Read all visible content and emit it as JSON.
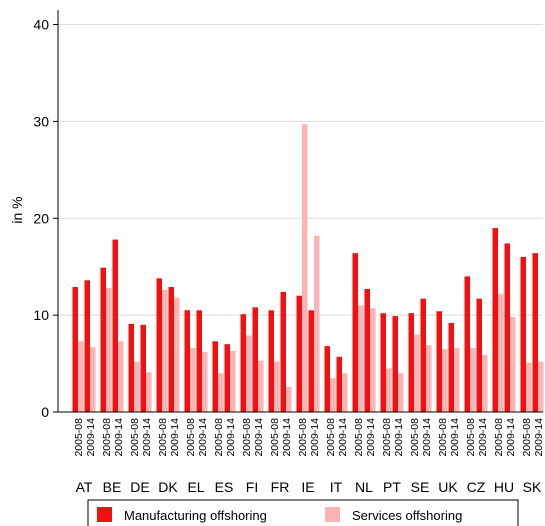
{
  "chart_data": {
    "type": "grouped-bar",
    "y_label": "in %",
    "groups": [
      "AT",
      "BE",
      "DE",
      "DK",
      "EL",
      "ES",
      "FI",
      "FR",
      "IE",
      "IT",
      "NL",
      "PT",
      "SE",
      "UK",
      "CZ",
      "HU",
      "SK"
    ],
    "categories": [
      "2005-08",
      "2009-14",
      "2005-08",
      "2009-14",
      "2005-08",
      "2009-14",
      "2005-08",
      "2009-14",
      "2005-08",
      "2009-14",
      "2005-08",
      "2009-14",
      "2005-08",
      "2009-14",
      "2005-08",
      "2009-14",
      "2005-08",
      "2009-14",
      "2005-08",
      "2009-14",
      "2005-08",
      "2009-14",
      "2005-08",
      "2009-14",
      "2005-08",
      "2009-14",
      "2005-08",
      "2009-14",
      "2005-08",
      "2009-14",
      "2005-08",
      "2009-14",
      "2005-08",
      "2009-14"
    ],
    "series": [
      {
        "name": "Manufacturing offshoring",
        "color": "#f21010",
        "values": [
          12.9,
          13.6,
          14.9,
          17.8,
          9.1,
          9.0,
          13.8,
          12.9,
          10.5,
          10.5,
          7.3,
          7.0,
          10.1,
          10.8,
          10.5,
          12.4,
          12.0,
          10.5,
          6.8,
          5.7,
          16.4,
          12.7,
          10.2,
          9.9,
          10.2,
          11.7,
          10.4,
          9.2,
          14.0,
          11.7,
          19.0,
          17.4,
          16.0,
          16.4
        ]
      },
      {
        "name": "Services offshoring",
        "color": "#fbb4b4",
        "values": [
          7.3,
          6.7,
          12.8,
          7.3,
          5.2,
          4.1,
          12.6,
          11.8,
          6.6,
          6.2,
          4.0,
          6.3,
          7.9,
          5.3,
          5.2,
          2.6,
          29.7,
          18.2,
          3.5,
          4.0,
          11.0,
          10.7,
          4.5,
          4.0,
          8.0,
          6.9,
          6.5,
          6.6,
          6.6,
          5.9,
          12.2,
          9.8,
          5.1,
          5.2
        ]
      }
    ],
    "ylim": [
      0,
      41.5
    ],
    "yticks": [
      0,
      10,
      20,
      30,
      40
    ],
    "grid": true
  }
}
